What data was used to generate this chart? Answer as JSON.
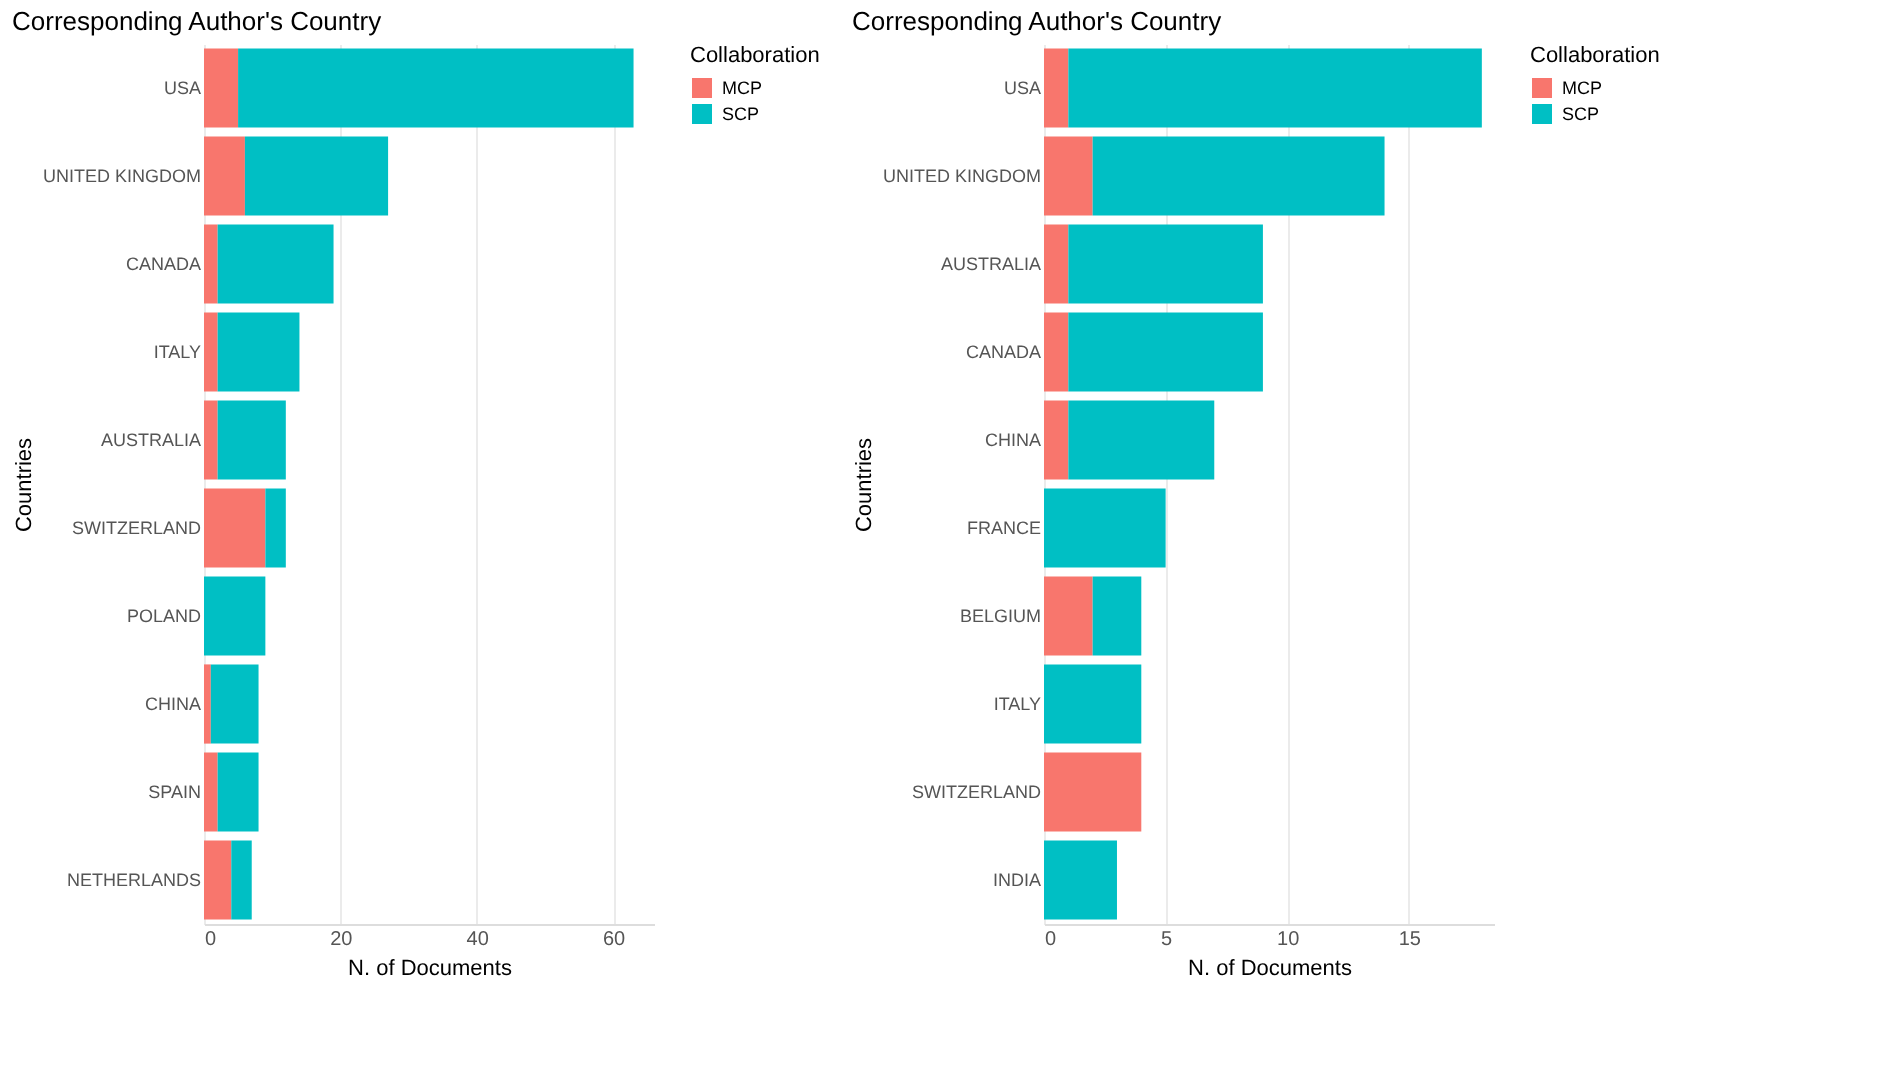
{
  "chart_data": [
    {
      "type": "bar",
      "orientation": "horizontal",
      "stacked": true,
      "title": "Corresponding Author's Country",
      "xlabel": "N. of Documents",
      "ylabel": "Countries",
      "legend_title": "Collaboration",
      "legend": "top right",
      "grid": true,
      "categories": [
        "USA",
        "UNITED KINGDOM",
        "CANADA",
        "ITALY",
        "AUSTRALIA",
        "SWITZERLAND",
        "POLAND",
        "CHINA",
        "SPAIN",
        "NETHERLANDS"
      ],
      "xlim": [
        0,
        66
      ],
      "xticks": [
        0,
        20,
        40,
        60
      ],
      "series": [
        {
          "name": "MCP",
          "color": "#f8766d",
          "values": [
            5,
            6,
            2,
            2,
            2,
            9,
            0,
            1,
            2,
            4
          ]
        },
        {
          "name": "SCP",
          "color": "#00bfc4",
          "values": [
            58,
            21,
            17,
            12,
            10,
            3,
            9,
            7,
            6,
            3
          ]
        }
      ]
    },
    {
      "type": "bar",
      "orientation": "horizontal",
      "stacked": true,
      "title": "Corresponding Author's Country",
      "xlabel": "N. of Documents",
      "ylabel": "Countries",
      "legend_title": "Collaboration",
      "legend": "top right",
      "grid": true,
      "categories": [
        "USA",
        "UNITED KINGDOM",
        "AUSTRALIA",
        "CANADA",
        "CHINA",
        "FRANCE",
        "BELGIUM",
        "ITALY",
        "SWITZERLAND",
        "INDIA"
      ],
      "xlim": [
        0,
        18.5
      ],
      "xticks": [
        0,
        5,
        10,
        15
      ],
      "series": [
        {
          "name": "MCP",
          "color": "#f8766d",
          "values": [
            1,
            2,
            1,
            1,
            1,
            0,
            2,
            0,
            4,
            0
          ]
        },
        {
          "name": "SCP",
          "color": "#00bfc4",
          "values": [
            17,
            12,
            8,
            8,
            6,
            5,
            2,
            4,
            0,
            3
          ]
        }
      ]
    }
  ]
}
